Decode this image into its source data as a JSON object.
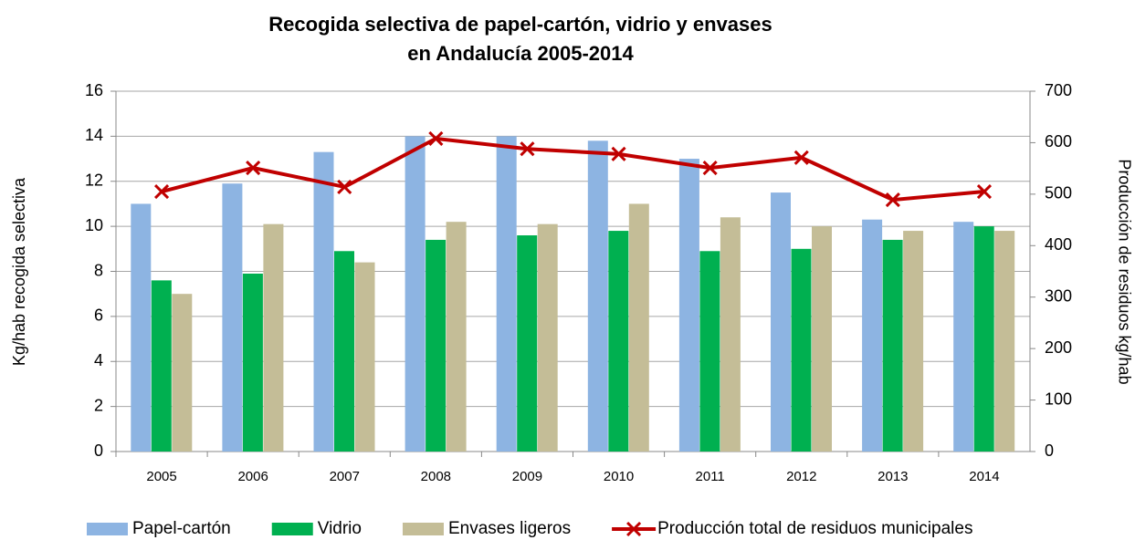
{
  "chart_data": {
    "type": "bar",
    "title": [
      "Recogida  selectiva  de papel-cartón,  vidrio  y envases",
      "en Andalucía  2005-2014"
    ],
    "ylabel": "Kg/hab recogida selectiva",
    "y2label": "Producción de residuos kg/hab",
    "categories": [
      "2005",
      "2006",
      "2007",
      "2008",
      "2009",
      "2010",
      "2011",
      "2012",
      "2013",
      "2014"
    ],
    "series": [
      {
        "name": "Papel-cartón",
        "type": "bar",
        "color": "#8db4e2",
        "values": [
          11.0,
          11.9,
          13.3,
          14.0,
          14.0,
          13.8,
          13.0,
          11.5,
          10.3,
          10.2
        ]
      },
      {
        "name": "Vidrio",
        "type": "bar",
        "color": "#00b050",
        "values": [
          7.6,
          7.9,
          8.9,
          9.4,
          9.6,
          9.8,
          8.9,
          9.0,
          9.4,
          10.0
        ]
      },
      {
        "name": "Envases ligeros",
        "type": "bar",
        "color": "#c4bd97",
        "values": [
          7.0,
          10.1,
          8.4,
          10.2,
          10.1,
          11.0,
          10.4,
          10.0,
          9.8,
          9.8
        ]
      },
      {
        "name": "Producción total de residuos municipales",
        "type": "line",
        "axis": "y2",
        "color": "#c00000",
        "values": [
          505,
          551,
          514,
          608,
          588,
          578,
          551,
          571,
          489,
          505
        ]
      }
    ],
    "ylim": [
      0,
      16
    ],
    "yticks": [
      0,
      2,
      4,
      6,
      8,
      10,
      12,
      14,
      16
    ],
    "y2lim": [
      0,
      700
    ],
    "y2ticks": [
      0,
      100,
      200,
      300,
      400,
      500,
      600,
      700
    ],
    "grid": true,
    "legend": "bottom"
  }
}
